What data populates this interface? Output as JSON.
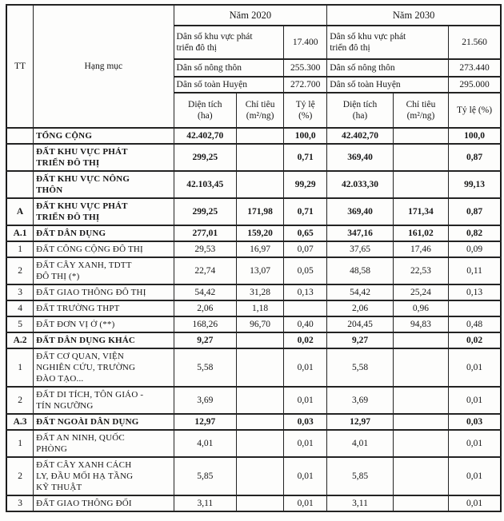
{
  "table": {
    "corner": {
      "tt_label": "TT",
      "category_label": "Hạng mục"
    },
    "year_groups": [
      {
        "year_label": "Năm 2020",
        "population": [
          {
            "label": "Dân số khu vực phát\ntriển đô thị",
            "value": "17.400"
          },
          {
            "label": "Dân số nông thôn",
            "value": "255.300"
          },
          {
            "label": "Dân số toàn Huyện",
            "value": "272.700"
          }
        ],
        "columns": [
          "Diện tích\n(ha)",
          "Chỉ tiêu\n(m²/ng)",
          "Tỷ lệ\n(%)"
        ]
      },
      {
        "year_label": "Năm 2030",
        "population": [
          {
            "label": "Dân số khu vực phát\ntriển đô thị",
            "value": "21.560"
          },
          {
            "label": "Dân số nông thôn",
            "value": "273.440"
          },
          {
            "label": "Dân số toàn Huyện",
            "value": "295.000"
          }
        ],
        "columns": [
          "Diện tích\n(ha)",
          "Chỉ tiêu\n(m²/ng)",
          "Tỷ lệ (%)"
        ]
      }
    ],
    "rows": [
      {
        "tt": "",
        "name": "TỔNG CỘNG",
        "bold": true,
        "values": [
          "42.402,70",
          "",
          "100,0",
          "42.402,70",
          "",
          "100,0"
        ]
      },
      {
        "tt": "",
        "name": "ĐẤT KHU VỰC PHÁT\nTRIỂN ĐÔ THỊ",
        "bold": true,
        "values": [
          "299,25",
          "",
          "0,71",
          "369,40",
          "",
          "0,87"
        ]
      },
      {
        "tt": "",
        "name": "ĐẤT KHU VỰC NÔNG\nTHÔN",
        "bold": true,
        "values": [
          "42.103,45",
          "",
          "99,29",
          "42.033,30",
          "",
          "99,13"
        ]
      },
      {
        "tt": "A",
        "name": "ĐẤT KHU VỰC PHÁT\nTRIỂN ĐÔ THỊ",
        "bold": true,
        "values": [
          "299,25",
          "171,98",
          "0,71",
          "369,40",
          "171,34",
          "0,87"
        ]
      },
      {
        "tt": "A.1",
        "name": "ĐẤT DÂN DỤNG",
        "bold": true,
        "values": [
          "277,01",
          "159,20",
          "0,65",
          "347,16",
          "161,02",
          "0,82"
        ]
      },
      {
        "tt": "1",
        "name": "ĐẤT CÔNG CỘNG ĐÔ THỊ",
        "bold": false,
        "values": [
          "29,53",
          "16,97",
          "0,07",
          "37,65",
          "17,46",
          "0,09"
        ]
      },
      {
        "tt": "2",
        "name": "ĐẤT CÂY XANH, TDTT\nĐÔ THỊ (*)",
        "bold": false,
        "values": [
          "22,74",
          "13,07",
          "0,05",
          "48,58",
          "22,53",
          "0,11"
        ]
      },
      {
        "tt": "3",
        "name": "ĐẤT GIAO THÔNG ĐÔ THỊ",
        "bold": false,
        "values": [
          "54,42",
          "31,28",
          "0,13",
          "54,42",
          "25,24",
          "0,13"
        ]
      },
      {
        "tt": "4",
        "name": "ĐẤT TRƯỜNG THPT",
        "bold": false,
        "values": [
          "2,06",
          "1,18",
          "",
          "2,06",
          "0,96",
          ""
        ]
      },
      {
        "tt": "5",
        "name": "ĐẤT ĐƠN VỊ Ở (**)",
        "bold": false,
        "values": [
          "168,26",
          "96,70",
          "0,40",
          "204,45",
          "94,83",
          "0,48"
        ]
      },
      {
        "tt": "A.2",
        "name": "ĐẤT DÂN DỤNG KHÁC",
        "bold": true,
        "values": [
          "9,27",
          "",
          "0,02",
          "9,27",
          "",
          "0,02"
        ]
      },
      {
        "tt": "1",
        "name": "ĐẤT CƠ QUAN, VIỆN\nNGHIÊN CỨU, TRƯỜNG\nĐÀO TẠO...",
        "bold": false,
        "values": [
          "5,58",
          "",
          "0,01",
          "5,58",
          "",
          "0,01"
        ]
      },
      {
        "tt": "2",
        "name": "ĐẤT DI TÍCH, TÔN GIÁO -\nTÍN NGƯỠNG",
        "bold": false,
        "values": [
          "3,69",
          "",
          "0,01",
          "3,69",
          "",
          "0,01"
        ]
      },
      {
        "tt": "A.3",
        "name": "ĐẤT NGOÀI DÂN DỤNG",
        "bold": true,
        "values": [
          "12,97",
          "",
          "0,03",
          "12,97",
          "",
          "0,03"
        ]
      },
      {
        "tt": "1",
        "name": "ĐẤT AN NINH, QUỐC\nPHÒNG",
        "bold": false,
        "values": [
          "4,01",
          "",
          "0,01",
          "4,01",
          "",
          "0,01"
        ]
      },
      {
        "tt": "2",
        "name": "ĐẤT CÂY XANH CÁCH\nLY,  ĐẦU MỐI HẠ TẦNG\nKỸ THUẬT",
        "bold": false,
        "values": [
          "5,85",
          "",
          "0,01",
          "5,85",
          "",
          "0,01"
        ]
      },
      {
        "tt": "3",
        "name": "ĐẤT GIAO THÔNG ĐỐI",
        "bold": false,
        "values": [
          "3,11",
          "",
          "0,01",
          "3,11",
          "",
          "0,01"
        ]
      }
    ]
  }
}
